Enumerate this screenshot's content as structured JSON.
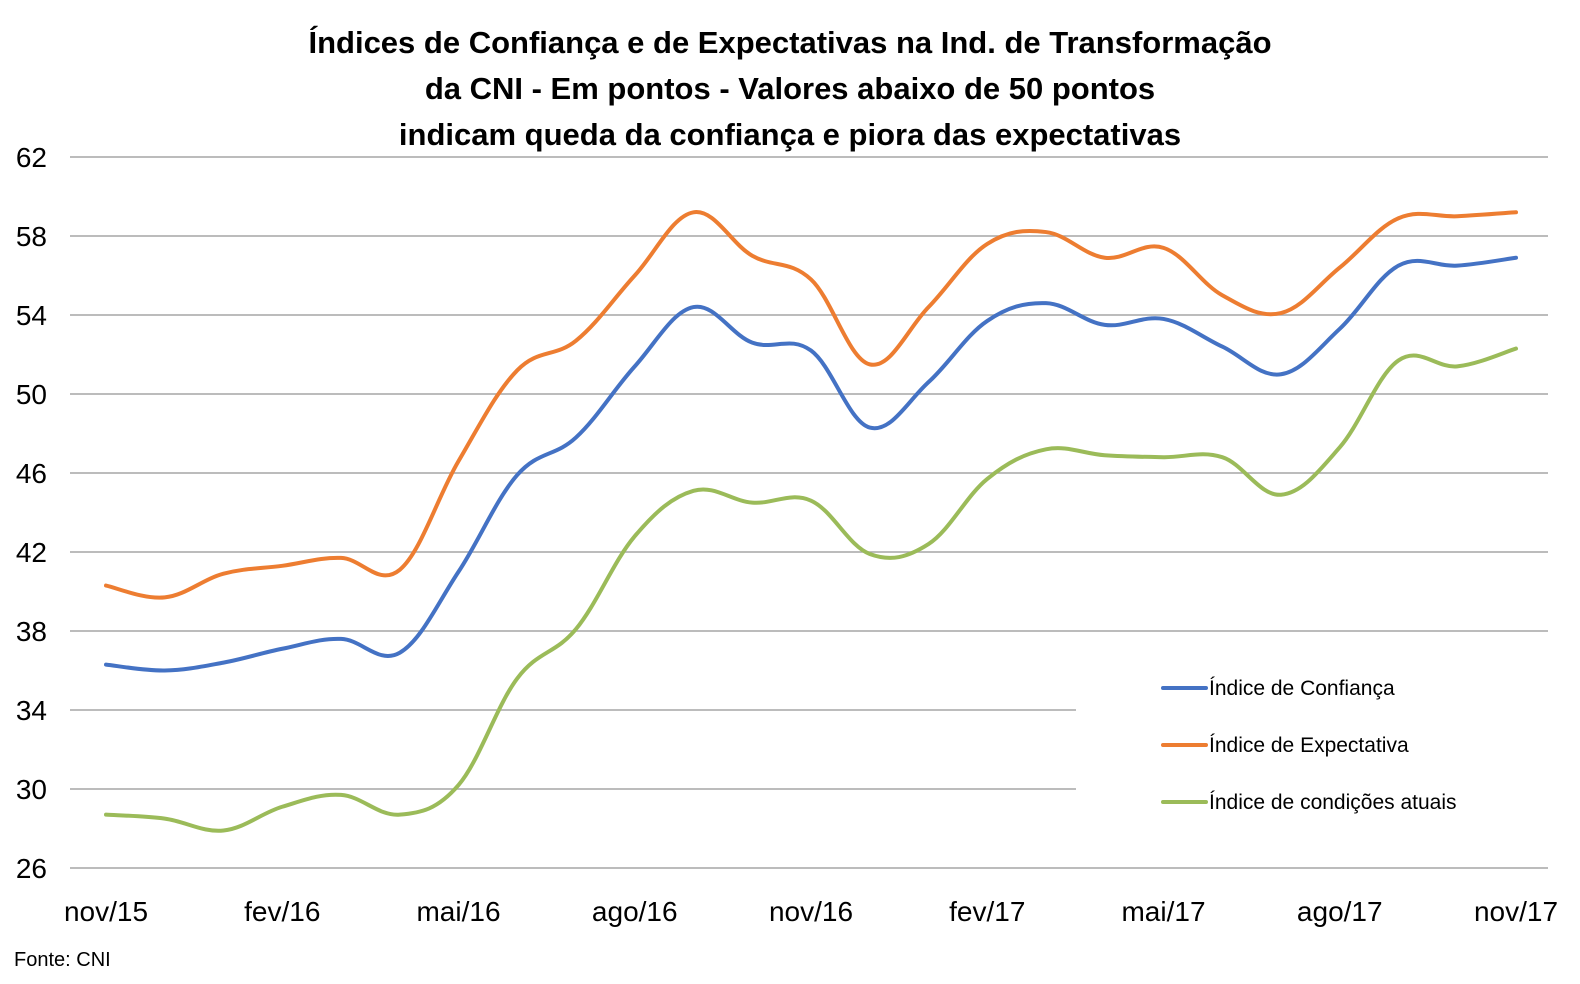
{
  "chart_data": {
    "type": "line",
    "title_lines": [
      "Índices de Confiança e de Expectativas na Ind. de Transformação",
      "da CNI - Em pontos - Valores abaixo de 50 pontos",
      "indicam queda da confiança e piora das expectativas"
    ],
    "xlabel": "",
    "ylabel": "",
    "x": [
      "nov/15",
      "dez/15",
      "jan/16",
      "fev/16",
      "mar/16",
      "abr/16",
      "mai/16",
      "jun/16",
      "jul/16",
      "ago/16",
      "set/16",
      "out/16",
      "nov/16",
      "dez/16",
      "jan/17",
      "fev/17",
      "mar/17",
      "abr/17",
      "mai/17",
      "jun/17",
      "jul/17",
      "ago/17",
      "set/17",
      "out/17",
      "nov/17"
    ],
    "x_tick_labels": [
      "nov/15",
      "fev/16",
      "mai/16",
      "ago/16",
      "nov/16",
      "fev/17",
      "mai/17",
      "ago/17",
      "nov/17"
    ],
    "x_tick_every": 3,
    "ylim": [
      26,
      62
    ],
    "y_ticks": [
      26,
      30,
      34,
      38,
      42,
      46,
      50,
      54,
      58,
      62
    ],
    "grid": true,
    "legend_position": "bottom-right",
    "series": [
      {
        "name": "Índice de Confiança",
        "color": "#4472C4",
        "values": [
          36.3,
          36.0,
          36.4,
          37.1,
          37.6,
          36.9,
          41.0,
          45.9,
          47.8,
          51.4,
          54.4,
          52.6,
          52.2,
          48.3,
          50.6,
          53.7,
          54.6,
          53.5,
          53.8,
          52.4,
          51.0,
          53.3,
          56.5,
          56.5,
          56.9
        ]
      },
      {
        "name": "Índice de Expectativa",
        "color": "#ED7D31",
        "values": [
          40.3,
          39.7,
          40.9,
          41.3,
          41.7,
          41.1,
          46.6,
          51.2,
          52.7,
          56.0,
          59.2,
          57.0,
          55.8,
          51.5,
          54.4,
          57.6,
          58.2,
          56.9,
          57.4,
          55.0,
          54.1,
          56.4,
          58.9,
          59.0,
          59.2
        ]
      },
      {
        "name": "Índice de condições atuais",
        "color": "#9BBB59",
        "values": [
          28.7,
          28.5,
          27.9,
          29.1,
          29.7,
          28.7,
          30.2,
          35.6,
          38.1,
          42.8,
          45.1,
          44.5,
          44.6,
          41.9,
          42.4,
          45.7,
          47.2,
          46.9,
          46.8,
          46.8,
          44.9,
          47.3,
          51.7,
          51.4,
          52.3
        ]
      }
    ],
    "source_text": "Fonte: CNI"
  }
}
